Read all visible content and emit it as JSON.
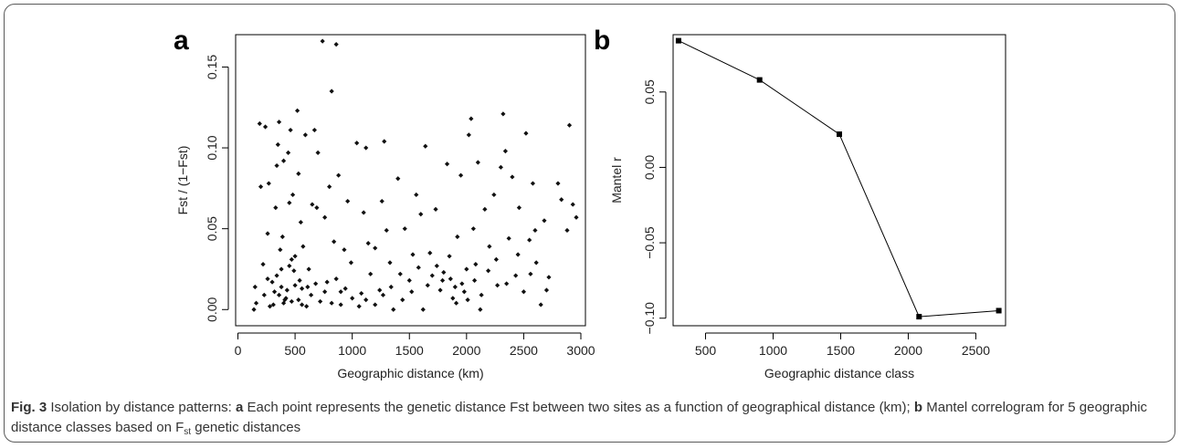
{
  "figure": {
    "caption": {
      "fig_label": "Fig. 3",
      "lead": "Isolation by distance patterns:",
      "a_label": "a",
      "a_text": "Each point represents the genetic distance Fst between two sites as a function of geographical distance (km);",
      "b_label": "b",
      "b_text_pre": "Mantel correlogram for 5 geographic distance classes based on F",
      "b_text_sub": "st",
      "b_text_post": "genetic distances"
    }
  },
  "chart_data": [
    {
      "panel": "a",
      "type": "scatter",
      "xlabel": "Geographic distance (km)",
      "ylabel": "Fst / (1−Fst)",
      "xlim": [
        -20,
        3040
      ],
      "ylim": [
        -0.01,
        0.17
      ],
      "xticks": [
        0,
        500,
        1000,
        1500,
        2000,
        2500,
        3000
      ],
      "yticks": [
        0.0,
        0.05,
        0.1,
        0.15
      ],
      "ytick_labels": [
        "0.00",
        "0.05",
        "0.10",
        "0.15"
      ],
      "grid": false,
      "points": [
        [
          140,
          0.0
        ],
        [
          150,
          0.014
        ],
        [
          190,
          0.115
        ],
        [
          200,
          0.076
        ],
        [
          220,
          0.028
        ],
        [
          240,
          0.113
        ],
        [
          260,
          0.047
        ],
        [
          270,
          0.078
        ],
        [
          280,
          0.002
        ],
        [
          300,
          0.017
        ],
        [
          320,
          0.011
        ],
        [
          330,
          0.063
        ],
        [
          340,
          0.089
        ],
        [
          350,
          0.102
        ],
        [
          360,
          0.116
        ],
        [
          370,
          0.037
        ],
        [
          380,
          0.014
        ],
        [
          390,
          0.045
        ],
        [
          400,
          0.092
        ],
        [
          410,
          0.006
        ],
        [
          420,
          0.007
        ],
        [
          440,
          0.097
        ],
        [
          450,
          0.066
        ],
        [
          460,
          0.111
        ],
        [
          470,
          0.031
        ],
        [
          480,
          0.071
        ],
        [
          490,
          0.024
        ],
        [
          500,
          0.015
        ],
        [
          520,
          0.123
        ],
        [
          530,
          0.084
        ],
        [
          540,
          0.018
        ],
        [
          550,
          0.054
        ],
        [
          560,
          0.003
        ],
        [
          570,
          0.039
        ],
        [
          590,
          0.108
        ],
        [
          610,
          0.014
        ],
        [
          620,
          0.025
        ],
        [
          650,
          0.065
        ],
        [
          670,
          0.111
        ],
        [
          690,
          0.063
        ],
        [
          700,
          0.097
        ],
        [
          740,
          0.166
        ],
        [
          760,
          0.057
        ],
        [
          780,
          0.017
        ],
        [
          800,
          0.076
        ],
        [
          820,
          0.135
        ],
        [
          840,
          0.042
        ],
        [
          860,
          0.164
        ],
        [
          880,
          0.083
        ],
        [
          900,
          0.011
        ],
        [
          930,
          0.037
        ],
        [
          960,
          0.067
        ],
        [
          990,
          0.029
        ],
        [
          1040,
          0.103
        ],
        [
          1080,
          0.01
        ],
        [
          1100,
          0.06
        ],
        [
          1120,
          0.1
        ],
        [
          1140,
          0.041
        ],
        [
          1160,
          0.022
        ],
        [
          1200,
          0.038
        ],
        [
          1240,
          0.012
        ],
        [
          1260,
          0.067
        ],
        [
          1280,
          0.104
        ],
        [
          1300,
          0.049
        ],
        [
          1330,
          0.029
        ],
        [
          1360,
          0.0
        ],
        [
          1400,
          0.081
        ],
        [
          1420,
          0.022
        ],
        [
          1460,
          0.05
        ],
        [
          1500,
          0.018
        ],
        [
          1530,
          0.034
        ],
        [
          1560,
          0.071
        ],
        [
          1600,
          0.059
        ],
        [
          1620,
          0.0
        ],
        [
          1640,
          0.101
        ],
        [
          1680,
          0.035
        ],
        [
          1700,
          0.021
        ],
        [
          1730,
          0.062
        ],
        [
          1770,
          0.012
        ],
        [
          1800,
          0.023
        ],
        [
          1830,
          0.09
        ],
        [
          1850,
          0.033
        ],
        [
          1880,
          0.007
        ],
        [
          1900,
          0.014
        ],
        [
          1920,
          0.045
        ],
        [
          1950,
          0.083
        ],
        [
          1980,
          0.011
        ],
        [
          2000,
          0.025
        ],
        [
          2020,
          0.108
        ],
        [
          2040,
          0.118
        ],
        [
          2060,
          0.05
        ],
        [
          2080,
          0.028
        ],
        [
          2100,
          0.091
        ],
        [
          2120,
          0.0
        ],
        [
          2160,
          0.062
        ],
        [
          2200,
          0.039
        ],
        [
          2240,
          0.071
        ],
        [
          2270,
          0.015
        ],
        [
          2300,
          0.088
        ],
        [
          2320,
          0.121
        ],
        [
          2340,
          0.098
        ],
        [
          2370,
          0.044
        ],
        [
          2400,
          0.082
        ],
        [
          2430,
          0.021
        ],
        [
          2460,
          0.063
        ],
        [
          2500,
          0.011
        ],
        [
          2520,
          0.109
        ],
        [
          2550,
          0.043
        ],
        [
          2580,
          0.078
        ],
        [
          2600,
          0.049
        ],
        [
          2650,
          0.003
        ],
        [
          2680,
          0.055
        ],
        [
          2720,
          0.02
        ],
        [
          2800,
          0.078
        ],
        [
          2830,
          0.068
        ],
        [
          2880,
          0.049
        ],
        [
          2900,
          0.114
        ],
        [
          2930,
          0.065
        ],
        [
          2960,
          0.057
        ],
        [
          160,
          0.004
        ],
        [
          230,
          0.009
        ],
        [
          260,
          0.019
        ],
        [
          310,
          0.003
        ],
        [
          340,
          0.021
        ],
        [
          360,
          0.009
        ],
        [
          380,
          0.025
        ],
        [
          400,
          0.004
        ],
        [
          430,
          0.012
        ],
        [
          450,
          0.027
        ],
        [
          470,
          0.005
        ],
        [
          500,
          0.033
        ],
        [
          530,
          0.006
        ],
        [
          560,
          0.013
        ],
        [
          600,
          0.002
        ],
        [
          640,
          0.009
        ],
        [
          680,
          0.016
        ],
        [
          720,
          0.005
        ],
        [
          760,
          0.011
        ],
        [
          820,
          0.004
        ],
        [
          860,
          0.019
        ],
        [
          900,
          0.003
        ],
        [
          940,
          0.013
        ],
        [
          1000,
          0.007
        ],
        [
          1060,
          0.002
        ],
        [
          1120,
          0.006
        ],
        [
          1200,
          0.003
        ],
        [
          1270,
          0.009
        ],
        [
          1340,
          0.014
        ],
        [
          1440,
          0.006
        ],
        [
          1520,
          0.011
        ],
        [
          1580,
          0.026
        ],
        [
          1660,
          0.015
        ],
        [
          1740,
          0.027
        ],
        [
          1790,
          0.018
        ],
        [
          1860,
          0.019
        ],
        [
          1910,
          0.004
        ],
        [
          1960,
          0.016
        ],
        [
          2010,
          0.006
        ],
        [
          2070,
          0.018
        ],
        [
          2130,
          0.009
        ],
        [
          2190,
          0.024
        ],
        [
          2260,
          0.031
        ],
        [
          2350,
          0.016
        ],
        [
          2450,
          0.034
        ],
        [
          2560,
          0.022
        ],
        [
          2610,
          0.029
        ],
        [
          2700,
          0.012
        ]
      ]
    },
    {
      "panel": "b",
      "type": "line",
      "xlabel": "Geographic distance class",
      "ylabel": "Mantel r",
      "xlim": [
        260,
        2720
      ],
      "ylim": [
        -0.105,
        0.088
      ],
      "xticks": [
        500,
        1000,
        1500,
        2000,
        2500
      ],
      "yticks": [
        -0.1,
        -0.05,
        0.0,
        0.05
      ],
      "ytick_labels": [
        "−0.10",
        "−0.05",
        "0.00",
        "0.05"
      ],
      "grid": false,
      "x": [
        300,
        900,
        1490,
        2080,
        2670
      ],
      "y": [
        0.084,
        0.058,
        0.022,
        -0.099,
        -0.095
      ]
    }
  ]
}
